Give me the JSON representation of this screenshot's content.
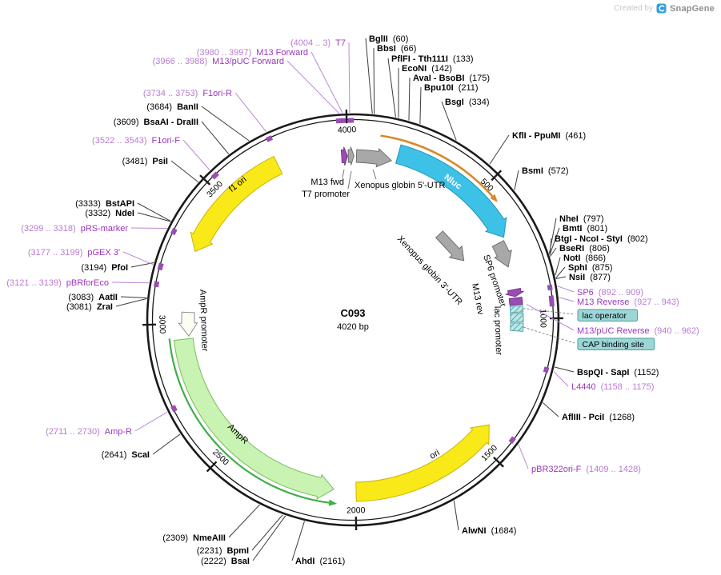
{
  "credit": {
    "prefix": "Created by",
    "brand": "SnapGene"
  },
  "map": {
    "title": "C093",
    "subtitle": "4020 bp",
    "length_bp": 4020,
    "colors": {
      "backbone": "#1a1a1a",
      "yellow_fill": "#FAE918",
      "yellow_stroke": "#C9B504",
      "cyan_fill": "#3EC1E6",
      "cyan_stroke": "#1E97BC",
      "gray_fill": "#A8A8A8",
      "gray_stroke": "#6F6F6F",
      "purple_fill": "#9A4DB4",
      "purple_stroke": "#6E3684",
      "teal_fill": "#BFE8E8",
      "teal_stroke": "#58A8A8",
      "green_fill": "#C8F3B2",
      "green_stroke": "#7BBD5D",
      "ivory_fill": "#FDFDF3",
      "ivory_stroke": "#8E8E8E",
      "orange_line": "#D8882A",
      "green_line": "#3FAE49",
      "primer_text": "#9A36BE",
      "primer_pos_text": "#B87CD1",
      "primer_line": "#BB87D6",
      "enzyme_line": "#3C3C3C",
      "flabel_box": "#9CD6D6",
      "flabel_border": "#4F9C9C"
    },
    "ticks": [
      {
        "bp": 500,
        "label": "500"
      },
      {
        "bp": 1000,
        "label": "1000"
      },
      {
        "bp": 1500,
        "label": "1500"
      },
      {
        "bp": 2000,
        "label": "2000"
      },
      {
        "bp": 2500,
        "label": "2500"
      },
      {
        "bp": 3000,
        "label": "3000"
      },
      {
        "bp": 3500,
        "label": "3500"
      },
      {
        "bp": 4000,
        "label": "4000"
      }
    ],
    "features": [
      {
        "id": "f1ori",
        "label": "f1 ori",
        "bp": [
          3277,
          3732
        ],
        "dir": -1,
        "style": "yellow"
      },
      {
        "id": "nluc",
        "label": "Nluc",
        "bp": [
          171,
          684
        ],
        "dir": 1,
        "style": "cyan"
      },
      {
        "id": "utr5",
        "label": "Xenopus globin 5'-UTR",
        "bp": [
          14,
          152
        ],
        "dir": 1,
        "style": "gray"
      },
      {
        "id": "t7prom",
        "label": "T7 promoter",
        "bp": [
          4002,
          4024
        ],
        "dir": 1,
        "style": "gray"
      },
      {
        "id": "m13fwd",
        "label": "M13 fwd",
        "bp": [
          3976,
          3999
        ],
        "dir": 1,
        "style": "purple"
      },
      {
        "id": "utr3",
        "label": "Xenopus globin 3'-UTR",
        "bp": [
          695,
          795
        ],
        "dir": 1,
        "style": "gray"
      },
      {
        "id": "sp6prom",
        "label": "SP6 promoter",
        "bp": [
          886,
          914
        ],
        "dir": 1,
        "style": "purple"
      },
      {
        "id": "m13rev",
        "label": "M13 rev",
        "bp": [
          919,
          946
        ],
        "dir": 0,
        "style": "purple"
      },
      {
        "id": "lacop_g",
        "label": "",
        "bp": [
          951,
          975
        ],
        "dir": 0,
        "style": "hatch"
      },
      {
        "id": "lacprom",
        "label": "lac promoter",
        "bp": [
          980,
          1012
        ],
        "dir": 0,
        "style": "hatch"
      },
      {
        "id": "cap_g",
        "label": "",
        "bp": [
          1017,
          1048
        ],
        "dir": 0,
        "style": "hatch"
      },
      {
        "id": "ori",
        "label": "ori",
        "bp": [
          1425,
          1998
        ],
        "dir": -1,
        "style": "yellow"
      },
      {
        "id": "ampr",
        "label": "AmpR",
        "bp": [
          2082,
          2942
        ],
        "dir": -1,
        "style": "green"
      },
      {
        "id": "amprprom",
        "label": "AmpR promoter",
        "bp": [
          2952,
          3044
        ],
        "dir": -1,
        "style": "ivory"
      },
      {
        "id": "orange_arc",
        "label": "",
        "bp": [
          95,
          541
        ],
        "dir": 1,
        "style": "orange-line"
      },
      {
        "id": "ampr_line",
        "label": "",
        "bp": [
          2085,
          2950
        ],
        "dir": -1,
        "style": "green-line"
      }
    ],
    "sites": [
      {
        "id": "bglii",
        "name": "BglII",
        "pos": "(60)",
        "type": "enzyme",
        "bp": 60
      },
      {
        "id": "bbsi",
        "name": "BbsI",
        "pos": "(66)",
        "type": "enzyme",
        "bp": 66
      },
      {
        "id": "pflfi",
        "name": "PflFI - Tth111I",
        "pos": "(133)",
        "type": "enzyme",
        "bp": 133
      },
      {
        "id": "econi",
        "name": "EcoNI",
        "pos": "(142)",
        "type": "enzyme",
        "bp": 142
      },
      {
        "id": "avai",
        "name": "AvaI - BsoBI",
        "pos": "(175)",
        "type": "enzyme",
        "bp": 175
      },
      {
        "id": "bpu10i",
        "name": "Bpu10I",
        "pos": "(211)",
        "type": "enzyme",
        "bp": 211
      },
      {
        "id": "bsgi",
        "name": "BsgI",
        "pos": "(334)",
        "type": "enzyme",
        "bp": 334
      },
      {
        "id": "kfli",
        "name": "KflI - PpuMI",
        "pos": "(461)",
        "type": "enzyme",
        "bp": 461
      },
      {
        "id": "bsmi",
        "name": "BsmI",
        "pos": "(572)",
        "type": "enzyme",
        "bp": 572
      },
      {
        "id": "nhei",
        "name": "NheI",
        "pos": "(797)",
        "type": "enzyme",
        "bp": 797
      },
      {
        "id": "bmti",
        "name": "BmtI",
        "pos": "(801)",
        "type": "enzyme",
        "bp": 801
      },
      {
        "id": "btgi",
        "name": "BtgI - NcoI - StyI",
        "pos": "(802)",
        "type": "enzyme",
        "bp": 802
      },
      {
        "id": "bseri",
        "name": "BseRI",
        "pos": "(806)",
        "type": "enzyme",
        "bp": 806
      },
      {
        "id": "noti",
        "name": "NotI",
        "pos": "(866)",
        "type": "enzyme",
        "bp": 866
      },
      {
        "id": "sphi",
        "name": "SphI",
        "pos": "(875)",
        "type": "enzyme",
        "bp": 875
      },
      {
        "id": "nsii",
        "name": "NsiI",
        "pos": "(877)",
        "type": "enzyme",
        "bp": 877
      },
      {
        "id": "sp6",
        "name": "SP6",
        "pos": "(892 .. 909)",
        "type": "primer",
        "bp": 900,
        "range": [
          892,
          909
        ]
      },
      {
        "id": "m13rev_p",
        "name": "M13 Reverse",
        "pos": "(927 .. 943)",
        "type": "primer",
        "bp": 935,
        "range": [
          927,
          943
        ]
      },
      {
        "id": "lacop",
        "name": "lac operator",
        "pos": "",
        "type": "flabel",
        "bp": 962
      },
      {
        "id": "m13pucrev",
        "name": "M13/pUC Reverse",
        "pos": "(940 .. 962)",
        "type": "primer",
        "bp": 948,
        "range": [
          940,
          962
        ]
      },
      {
        "id": "cap",
        "name": "CAP binding site",
        "pos": "",
        "type": "flabel",
        "bp": 1032
      },
      {
        "id": "bspqi",
        "name": "BspQI - SapI",
        "pos": "(1152)",
        "type": "enzyme",
        "bp": 1152
      },
      {
        "id": "l4440",
        "name": "L4440",
        "pos": "(1158 .. 1175)",
        "type": "primer",
        "bp": 1166,
        "range": [
          1158,
          1175
        ]
      },
      {
        "id": "afliii",
        "name": "AflIII - PciI",
        "pos": "(1268)",
        "type": "enzyme",
        "bp": 1268
      },
      {
        "id": "pbr322orif",
        "name": "pBR322ori-F",
        "pos": "(1409 .. 1428)",
        "type": "primer",
        "bp": 1418,
        "range": [
          1409,
          1428
        ]
      },
      {
        "id": "alwni",
        "name": "AlwNI",
        "pos": "(1684)",
        "type": "enzyme",
        "bp": 1684
      },
      {
        "id": "ahdi",
        "name": "AhdI",
        "pos": "(2161)",
        "type": "enzyme",
        "bp": 2161
      },
      {
        "id": "bsai",
        "name": "BsaI",
        "pos": "(2222)",
        "type": "enzyme",
        "bp": 2222
      },
      {
        "id": "bpmi",
        "name": "BpmI",
        "pos": "(2231)",
        "type": "enzyme",
        "bp": 2231
      },
      {
        "id": "nmeaiii",
        "name": "NmeAIII",
        "pos": "(2309)",
        "type": "enzyme",
        "bp": 2309
      },
      {
        "id": "scai",
        "name": "ScaI",
        "pos": "(2641)",
        "type": "enzyme",
        "bp": 2641
      },
      {
        "id": "ampr_primer",
        "name": "Amp-R",
        "pos": "(2711 .. 2730)",
        "type": "primer",
        "bp": 2720,
        "range": [
          2711,
          2730
        ]
      },
      {
        "id": "zrai",
        "name": "ZraI",
        "pos": "(3081)",
        "type": "enzyme",
        "bp": 3081
      },
      {
        "id": "aatii",
        "name": "AatII",
        "pos": "(3083)",
        "type": "enzyme",
        "bp": 3083
      },
      {
        "id": "pbrforeco",
        "name": "pBRforEco",
        "pos": "(3121 .. 3139)",
        "type": "primer",
        "bp": 3130,
        "range": [
          3121,
          3139
        ]
      },
      {
        "id": "pfoi",
        "name": "PfoI",
        "pos": "(3194)",
        "type": "enzyme",
        "bp": 3194
      },
      {
        "id": "pgex3",
        "name": "pGEX 3'",
        "pos": "(3177 .. 3199)",
        "type": "primer",
        "bp": 3188,
        "range": [
          3177,
          3199
        ]
      },
      {
        "id": "prsmarker",
        "name": "pRS-marker",
        "pos": "(3299 .. 3318)",
        "type": "primer",
        "bp": 3308,
        "range": [
          3299,
          3318
        ]
      },
      {
        "id": "ndei",
        "name": "NdeI",
        "pos": "(3332)",
        "type": "enzyme",
        "bp": 3332
      },
      {
        "id": "bstapi",
        "name": "BstAPI",
        "pos": "(3333)",
        "type": "enzyme",
        "bp": 3333
      },
      {
        "id": "psii",
        "name": "PsiI",
        "pos": "(3481)",
        "type": "enzyme",
        "bp": 3481
      },
      {
        "id": "f1orif",
        "name": "F1ori-F",
        "pos": "(3522 .. 3543)",
        "type": "primer",
        "bp": 3532,
        "range": [
          3522,
          3543
        ]
      },
      {
        "id": "bsaai",
        "name": "BsaAI - DraIII",
        "pos": "(3609)",
        "type": "enzyme",
        "bp": 3609
      },
      {
        "id": "banii",
        "name": "BanII",
        "pos": "(3684)",
        "type": "enzyme",
        "bp": 3684
      },
      {
        "id": "f1orir",
        "name": "F1ori-R",
        "pos": "(3734 .. 3753)",
        "type": "primer",
        "bp": 3744,
        "range": [
          3734,
          3753
        ]
      },
      {
        "id": "m13pucfwd",
        "name": "M13/pUC Forward",
        "pos": "(3966 .. 3988)",
        "type": "primer",
        "bp": 3977,
        "range": [
          3966,
          3988
        ]
      },
      {
        "id": "m13fwd_p",
        "name": "M13 Forward",
        "pos": "(3980 .. 3997)",
        "type": "primer",
        "bp": 3988,
        "range": [
          3980,
          3997
        ]
      },
      {
        "id": "t7",
        "name": "T7",
        "pos": "(4004 .. 3)",
        "type": "primer",
        "bp": 4010,
        "range": [
          4004,
          4023
        ]
      }
    ]
  }
}
